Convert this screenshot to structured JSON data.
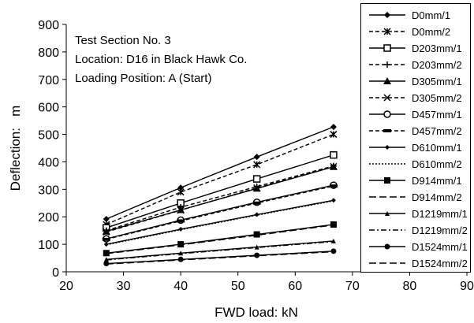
{
  "chart_data": {
    "type": "line",
    "title": "",
    "xlabel": "FWD load: kN",
    "ylabel": "Deflection:   m",
    "xlim": [
      20,
      90
    ],
    "ylim": [
      0,
      900
    ],
    "xticks": [
      20,
      30,
      40,
      50,
      60,
      70,
      80,
      90
    ],
    "yticks": [
      0,
      100,
      200,
      300,
      400,
      500,
      600,
      700,
      800,
      900
    ],
    "grid": false,
    "legend": "right",
    "annotations": [
      "Test Section No. 3",
      "Location: D16 in Black Hawk Co.",
      "Loading Position: A (Start)"
    ],
    "x": [
      27,
      40,
      53.3,
      66.7
    ],
    "series": [
      {
        "name": "D0mm/1",
        "marker": "diamond",
        "dash": "solid",
        "values": [
          192,
          306,
          418,
          527
        ]
      },
      {
        "name": "D0mm/2",
        "marker": "asterisk",
        "dash": "dash",
        "values": [
          172,
          290,
          390,
          500
        ]
      },
      {
        "name": "D203mm/1",
        "marker": "square-open",
        "dash": "solid",
        "values": [
          160,
          250,
          338,
          425
        ]
      },
      {
        "name": "D203mm/2",
        "marker": "plus",
        "dash": "dash",
        "values": [
          150,
          235,
          310,
          385
        ]
      },
      {
        "name": "D305mm/1",
        "marker": "triangle",
        "dash": "solid",
        "values": [
          147,
          225,
          303,
          382
        ]
      },
      {
        "name": "D305mm/2",
        "marker": "x",
        "dash": "dash",
        "values": [
          145,
          224,
          305,
          383
        ]
      },
      {
        "name": "D457mm/1",
        "marker": "circle-open",
        "dash": "solid",
        "values": [
          120,
          188,
          253,
          315
        ]
      },
      {
        "name": "D457mm/2",
        "marker": "bar",
        "dash": "dash",
        "values": [
          118,
          185,
          250,
          312
        ]
      },
      {
        "name": "D610mm/1",
        "marker": "diamond-small",
        "dash": "solid",
        "values": [
          100,
          155,
          208,
          260
        ]
      },
      {
        "name": "D610mm/2",
        "marker": "none",
        "dash": "dot",
        "values": [
          98,
          153,
          206,
          258
        ]
      },
      {
        "name": "D914mm/1",
        "marker": "square",
        "dash": "solid",
        "values": [
          68,
          100,
          136,
          172
        ]
      },
      {
        "name": "D914mm/2",
        "marker": "none",
        "dash": "longdash",
        "values": [
          66,
          98,
          133,
          170
        ]
      },
      {
        "name": "D1219mm/1",
        "marker": "triangle-small",
        "dash": "solid",
        "values": [
          45,
          68,
          90,
          112
        ]
      },
      {
        "name": "D1219mm/2",
        "marker": "none",
        "dash": "dashdot",
        "values": [
          43,
          66,
          88,
          110
        ]
      },
      {
        "name": "D1524mm/1",
        "marker": "circle",
        "dash": "solid",
        "values": [
          30,
          45,
          60,
          75
        ]
      },
      {
        "name": "D1524mm/2",
        "marker": "none",
        "dash": "longdash",
        "values": [
          28,
          43,
          58,
          73
        ]
      }
    ]
  }
}
